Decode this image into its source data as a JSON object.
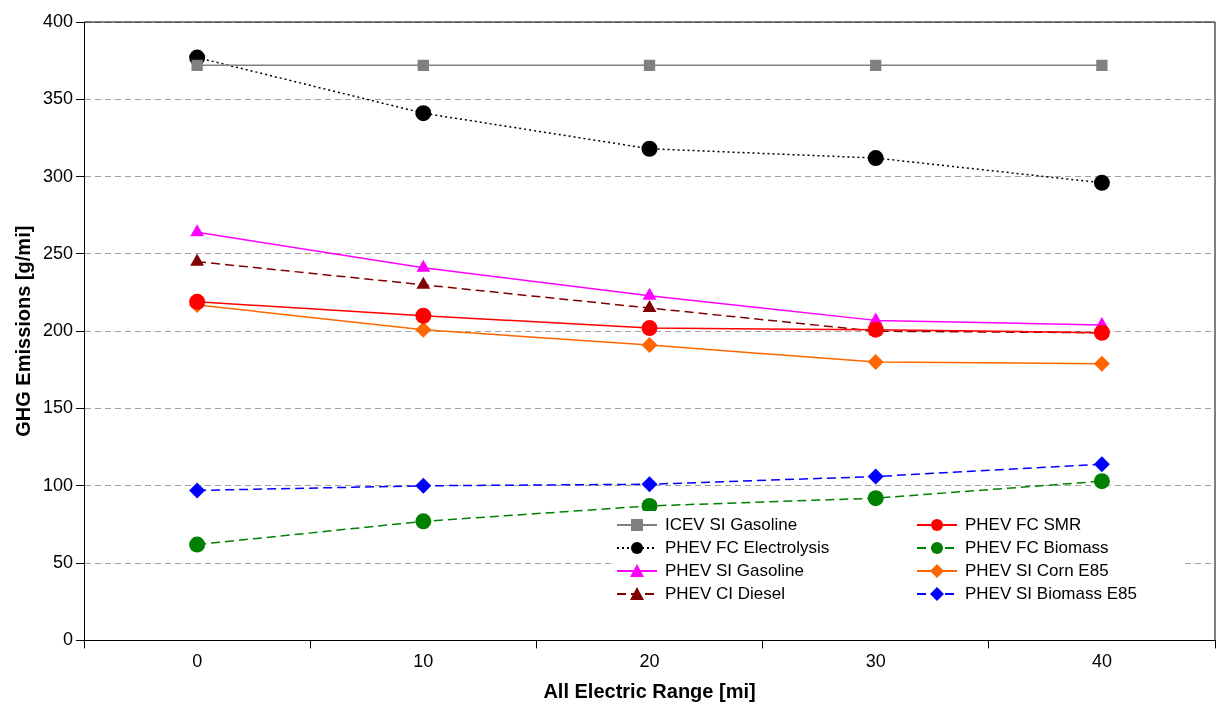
{
  "chart_data": {
    "type": "line",
    "xlabel": "All Electric Range [mi]",
    "ylabel": "GHG Emissions [g/mi]",
    "categories": [
      "0",
      "10",
      "20",
      "30",
      "40"
    ],
    "ylim": [
      0,
      400
    ],
    "yticks": [
      0,
      50,
      100,
      150,
      200,
      250,
      300,
      350,
      400
    ],
    "grid": "y",
    "legend": "bottom right",
    "series": [
      {
        "name": "ICEV SI Gasoline",
        "color": "#808080",
        "marker": "square",
        "line_style": "solid",
        "values": [
          372,
          372,
          372,
          372,
          372
        ]
      },
      {
        "name": "PHEV FC SMR",
        "color": "#ff0000",
        "marker": "circle",
        "line_style": "solid",
        "values": [
          219,
          210,
          202,
          201,
          199
        ]
      },
      {
        "name": "PHEV FC Electrolysis",
        "color": "#000000",
        "marker": "circle",
        "line_style": "dotted",
        "values": [
          377,
          341,
          318,
          312,
          296
        ]
      },
      {
        "name": "PHEV FC Biomass",
        "color": "#008000",
        "marker": "circle",
        "line_style": "dashed",
        "values": [
          62,
          77,
          87,
          92,
          103
        ]
      },
      {
        "name": "PHEV SI Gasoline",
        "color": "#ff00ff",
        "marker": "triangle",
        "line_style": "solid",
        "values": [
          264,
          241,
          223,
          207,
          204
        ]
      },
      {
        "name": "PHEV SI Corn E85",
        "color": "#ff6600",
        "marker": "diamond",
        "line_style": "solid",
        "values": [
          217,
          201,
          191,
          180,
          179
        ]
      },
      {
        "name": "PHEV CI Diesel",
        "color": "#800000",
        "marker": "triangle",
        "line_style": "dashed",
        "values": [
          245,
          230,
          215,
          200,
          199
        ]
      },
      {
        "name": "PHEV SI Biomass E85",
        "color": "#0000ff",
        "marker": "diamond",
        "line_style": "dashed",
        "values": [
          97,
          100,
          101,
          106,
          114
        ]
      }
    ]
  }
}
